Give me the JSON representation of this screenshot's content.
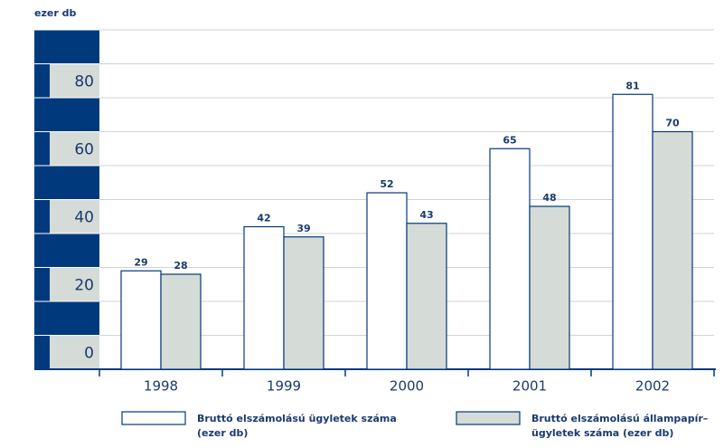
{
  "chart_data": {
    "type": "bar",
    "y_label": "ezer db",
    "categories": [
      "1998",
      "1999",
      "2000",
      "2001",
      "2002"
    ],
    "series": [
      {
        "name": "Bruttó elszámolású ügyletek száma (ezer db)",
        "color": "#ffffff",
        "values": [
          29,
          42,
          52,
          65,
          81
        ]
      },
      {
        "name": "Bruttó elszámolású állampapír–ügyletek száma (ezer db)",
        "color": "#d5dbd6",
        "values": [
          28,
          39,
          43,
          48,
          70
        ]
      }
    ],
    "ylim": [
      0,
      100
    ],
    "yticks": [
      0,
      20,
      40,
      60,
      80
    ],
    "grid": true,
    "axis_color": "#003a7d"
  }
}
